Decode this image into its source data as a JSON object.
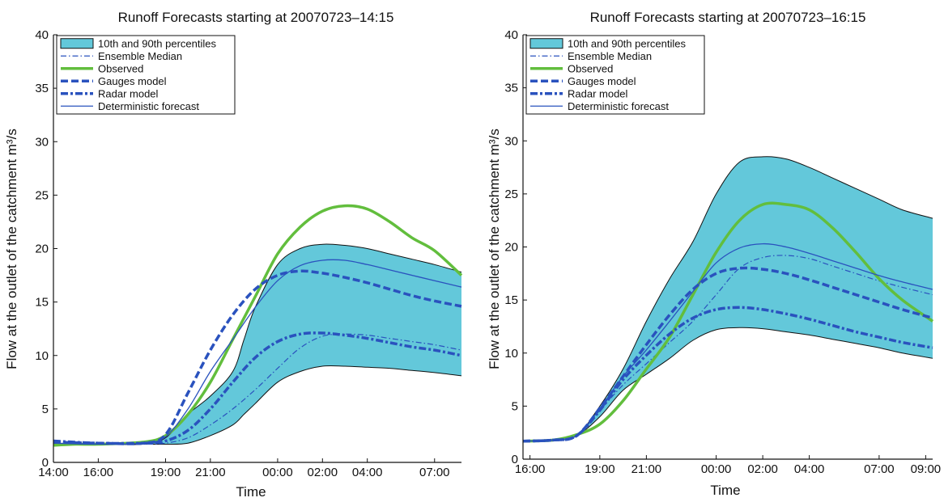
{
  "colors": {
    "band_fill": "#63C8DA",
    "band_edge": "#111111",
    "observed": "#62BE3D",
    "forecast_blue": "#2A52BE"
  },
  "chart_data": [
    {
      "type": "line",
      "title": "Runoff Forecasts starting at 20070723–14:15",
      "xlabel": "Time",
      "ylabel": "Flow at the outlet of the catchment m³/s",
      "ylim": [
        0,
        40
      ],
      "yticks": [
        0,
        5,
        10,
        15,
        20,
        25,
        30,
        35,
        40
      ],
      "xlim_hours": [
        0,
        18.2
      ],
      "xtick_hours": [
        0,
        2,
        5,
        7,
        10,
        12,
        14,
        17
      ],
      "xtick_labels": [
        "14:00",
        "16:00",
        "19:00",
        "21:00",
        "00:00",
        "02:00",
        "04:00",
        "07:00"
      ],
      "legend_position": "top-left",
      "legend": [
        "10th and 90th percentiles",
        "Ensemble Median",
        "Observed",
        "Gauges model",
        "Radar model",
        "Deterministic forecast"
      ],
      "band": {
        "name": "10th and 90th percentiles",
        "x": [
          0,
          2,
          4,
          5,
          6,
          7,
          8,
          8.5,
          9,
          10,
          11,
          12,
          13,
          14,
          15,
          16,
          17,
          18.2
        ],
        "lower": [
          1.8,
          1.7,
          1.7,
          1.7,
          1.8,
          2.5,
          3.5,
          4.5,
          5.5,
          7.5,
          8.5,
          9.0,
          9.0,
          8.9,
          8.8,
          8.6,
          8.4,
          8.1
        ],
        "upper": [
          1.8,
          1.7,
          1.7,
          2.3,
          4.5,
          6.2,
          8.5,
          11.5,
          14.5,
          18.5,
          20.0,
          20.4,
          20.3,
          20.0,
          19.5,
          19.0,
          18.5,
          17.8
        ]
      },
      "series": [
        {
          "name": "Ensemble Median",
          "x": [
            0,
            2,
            4,
            5,
            6,
            7,
            8,
            9,
            10,
            11,
            12,
            13,
            14,
            15,
            16,
            17,
            18.2
          ],
          "values": [
            1.8,
            1.7,
            1.7,
            1.8,
            2.3,
            3.5,
            5.0,
            6.8,
            8.8,
            10.7,
            11.8,
            12.0,
            11.9,
            11.6,
            11.3,
            11.0,
            10.5
          ]
        },
        {
          "name": "Observed",
          "x": [
            0,
            1,
            2,
            4,
            5,
            6,
            7,
            8,
            9,
            10,
            11,
            12,
            13,
            14,
            15,
            16,
            17,
            18.2
          ],
          "values": [
            1.6,
            1.7,
            1.7,
            1.9,
            2.5,
            4.5,
            7.5,
            11.5,
            15.5,
            19.5,
            22.0,
            23.5,
            24.0,
            23.7,
            22.5,
            21.0,
            19.8,
            17.5
          ]
        },
        {
          "name": "Gauges model",
          "x": [
            0,
            2,
            4,
            5,
            6,
            7,
            8,
            9,
            10,
            11,
            12,
            13,
            14,
            15,
            16,
            17,
            18.2
          ],
          "values": [
            1.9,
            1.8,
            1.8,
            2.6,
            6.5,
            10.5,
            13.8,
            16.2,
            17.5,
            17.9,
            17.7,
            17.3,
            16.8,
            16.2,
            15.6,
            15.1,
            14.6
          ]
        },
        {
          "name": "Radar model",
          "x": [
            0,
            2,
            4,
            5,
            6,
            7,
            8,
            9,
            10,
            11,
            12,
            13,
            14,
            15,
            16,
            17,
            18.2
          ],
          "values": [
            2.0,
            1.8,
            1.8,
            2.0,
            3.0,
            5.0,
            7.5,
            9.8,
            11.3,
            12.0,
            12.1,
            11.9,
            11.6,
            11.2,
            10.8,
            10.5,
            10.0
          ]
        },
        {
          "name": "Deterministic forecast",
          "x": [
            0,
            2,
            4,
            5,
            6,
            7,
            8,
            9,
            10,
            11,
            12,
            13,
            14,
            15,
            16,
            17,
            18.2
          ],
          "values": [
            1.8,
            1.7,
            1.8,
            2.4,
            5.0,
            8.5,
            11.5,
            14.5,
            17.0,
            18.4,
            18.9,
            18.9,
            18.5,
            18.0,
            17.5,
            17.0,
            16.4
          ]
        }
      ]
    },
    {
      "type": "line",
      "title": "Runoff Forecasts starting at 20070723–16:15",
      "xlabel": "Time",
      "ylabel": "Flow at the outlet of the catchment m³/s",
      "ylim": [
        0,
        40
      ],
      "yticks": [
        0,
        5,
        10,
        15,
        20,
        25,
        30,
        35,
        40
      ],
      "xlim_hours": [
        -0.3,
        17.3
      ],
      "xtick_hours": [
        0,
        3,
        5,
        8,
        10,
        12,
        15,
        17
      ],
      "xtick_labels": [
        "16:00",
        "19:00",
        "21:00",
        "00:00",
        "02:00",
        "04:00",
        "07:00",
        "09:00"
      ],
      "legend_position": "top-left",
      "legend": [
        "10th and 90th percentiles",
        "Ensemble Median",
        "Observed",
        "Gauges model",
        "Radar model",
        "Deterministic forecast"
      ],
      "band": {
        "name": "10th and 90th percentiles",
        "x": [
          -0.3,
          1,
          2,
          3,
          4,
          5,
          6,
          7,
          8,
          9,
          10,
          11,
          12,
          13,
          14,
          15,
          16,
          17.3
        ],
        "lower": [
          1.7,
          1.8,
          2.2,
          4.0,
          6.5,
          8.0,
          9.5,
          11.2,
          12.2,
          12.4,
          12.3,
          12.0,
          11.7,
          11.3,
          10.9,
          10.5,
          10.0,
          9.5
        ],
        "upper": [
          1.7,
          1.8,
          2.2,
          5.0,
          8.5,
          13.0,
          17.0,
          20.5,
          25.0,
          28.0,
          28.5,
          28.3,
          27.5,
          26.5,
          25.5,
          24.5,
          23.5,
          22.7
        ]
      },
      "series": [
        {
          "name": "Ensemble Median",
          "x": [
            -0.3,
            1,
            2,
            3,
            4,
            5,
            6,
            7,
            8,
            9,
            10,
            11,
            12,
            13,
            14,
            15,
            16,
            17.3
          ],
          "values": [
            1.7,
            1.8,
            2.2,
            4.6,
            7.0,
            9.0,
            11.0,
            13.0,
            15.5,
            18.0,
            19.0,
            19.2,
            18.9,
            18.2,
            17.5,
            16.8,
            16.2,
            15.5
          ]
        },
        {
          "name": "Observed",
          "x": [
            -0.3,
            1,
            2,
            3,
            4,
            5,
            6,
            7,
            8,
            9,
            10,
            11,
            12,
            13,
            14,
            15,
            16,
            17.3
          ],
          "values": [
            1.7,
            1.8,
            2.3,
            3.3,
            5.5,
            8.5,
            11.5,
            15.5,
            19.5,
            22.5,
            24.0,
            24.0,
            23.5,
            21.8,
            19.5,
            17.0,
            15.0,
            13.0
          ]
        },
        {
          "name": "Gauges model",
          "x": [
            -0.3,
            1,
            2,
            3,
            4,
            5,
            6,
            7,
            8,
            9,
            10,
            11,
            12,
            13,
            14,
            15,
            16,
            17.3
          ],
          "values": [
            1.7,
            1.8,
            2.2,
            4.8,
            7.8,
            10.8,
            13.6,
            16.0,
            17.5,
            18.0,
            17.9,
            17.5,
            16.9,
            16.2,
            15.5,
            14.8,
            14.1,
            13.3
          ]
        },
        {
          "name": "Radar model",
          "x": [
            -0.3,
            1,
            2,
            3,
            4,
            5,
            6,
            7,
            8,
            9,
            10,
            11,
            12,
            13,
            14,
            15,
            16,
            17.3
          ],
          "values": [
            1.7,
            1.8,
            2.2,
            4.6,
            7.5,
            9.8,
            11.8,
            13.3,
            14.1,
            14.3,
            14.1,
            13.7,
            13.2,
            12.6,
            12.0,
            11.5,
            11.0,
            10.5
          ]
        },
        {
          "name": "Deterministic forecast",
          "x": [
            -0.3,
            1,
            2,
            3,
            4,
            5,
            6,
            7,
            8,
            9,
            10,
            11,
            12,
            13,
            14,
            15,
            16,
            17.3
          ],
          "values": [
            1.7,
            1.8,
            2.2,
            4.8,
            7.8,
            10.3,
            13.0,
            15.8,
            18.5,
            19.9,
            20.3,
            20.0,
            19.4,
            18.7,
            18.0,
            17.3,
            16.7,
            16.0
          ]
        }
      ]
    }
  ]
}
